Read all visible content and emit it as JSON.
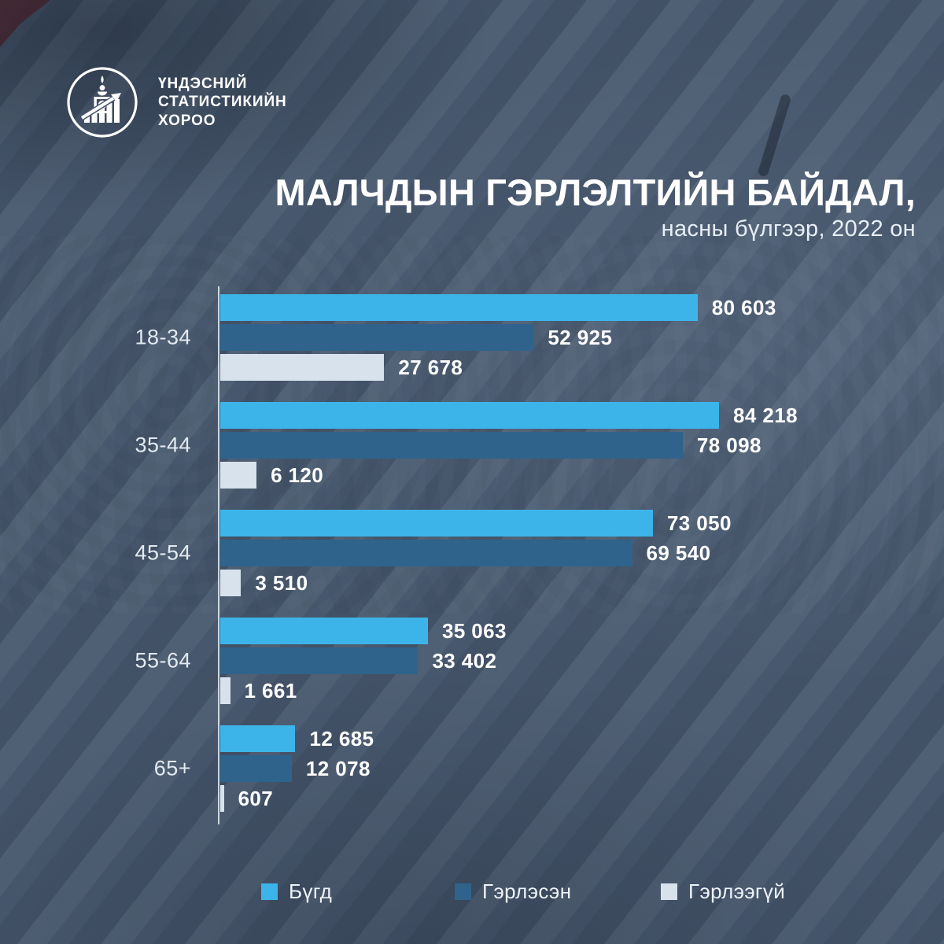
{
  "brand": {
    "org_lines": [
      "ҮНДЭСНИЙ",
      "СТАТИСТИКИЙН",
      "ХОРОО"
    ]
  },
  "header": {
    "title": "МАЛЧДЫН ГЭРЛЭЛТИЙН БАЙДАЛ,",
    "subtitle": "насны бүлгээр, 2022 он"
  },
  "colors": {
    "background": "#47576d",
    "series_total": "#3cb4ea",
    "series_married": "#2f638b",
    "series_unmarried": "#d7e2ec",
    "text_primary": "#ffffff",
    "text_secondary": "#e3e9f1",
    "axis": "#e4edf5"
  },
  "chart_data": {
    "type": "bar",
    "orientation": "horizontal",
    "title": "МАЛЧДЫН ГЭРЛЭЛТИЙН БАЙДАЛ,",
    "subtitle": "насны бүлгээр, 2022 он",
    "categories": [
      "18-34",
      "35-44",
      "45-54",
      "55-64",
      "65+"
    ],
    "series": [
      {
        "name": "Бүгд",
        "color": "#3cb4ea",
        "values": [
          80603,
          84218,
          73050,
          35063,
          12685
        ],
        "labels": [
          "80 603",
          "84 218",
          "73 050",
          "35 063",
          "12 685"
        ]
      },
      {
        "name": "Гэрлэсэн",
        "color": "#2f638b",
        "values": [
          52925,
          78098,
          69540,
          33402,
          12078
        ],
        "labels": [
          "52 925",
          "78 098",
          "69 540",
          "33 402",
          "12 078"
        ]
      },
      {
        "name": "Гэрлээгүй",
        "color": "#d7e2ec",
        "values": [
          27678,
          6120,
          3510,
          1661,
          607
        ],
        "labels": [
          "27 678",
          "6 120",
          "3 510",
          "1 661",
          "607"
        ]
      }
    ],
    "xlim": [
      0,
      84218
    ],
    "grid": false,
    "legend_position": "bottom",
    "value_labels": "outside-end"
  }
}
